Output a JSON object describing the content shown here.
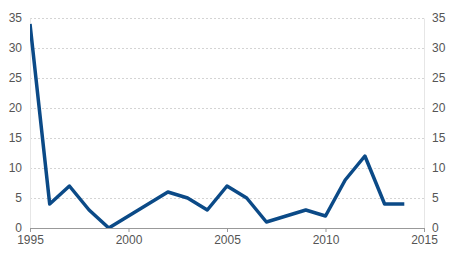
{
  "chart_data": {
    "type": "line",
    "x": [
      1995,
      1996,
      1997,
      1998,
      1999,
      2000,
      2001,
      2002,
      2003,
      2004,
      2005,
      2006,
      2007,
      2008,
      2009,
      2010,
      2011,
      2012,
      2013,
      2014
    ],
    "values": [
      34,
      4,
      7,
      3,
      0,
      2,
      4,
      6,
      5,
      3,
      7,
      5,
      1,
      2,
      3,
      2,
      8,
      12,
      4,
      4
    ],
    "color": "#0b4a87",
    "xlim": [
      1995,
      2015
    ],
    "xticks": [
      1995,
      2000,
      2005,
      2010,
      2015
    ],
    "ylim": [
      0,
      35
    ],
    "yticks": [
      0,
      5,
      10,
      15,
      20,
      25,
      30,
      35
    ],
    "y2lim": [
      0,
      35
    ],
    "y2ticks": [
      0,
      5,
      10,
      15,
      20,
      25,
      30,
      35
    ],
    "grid": true
  }
}
